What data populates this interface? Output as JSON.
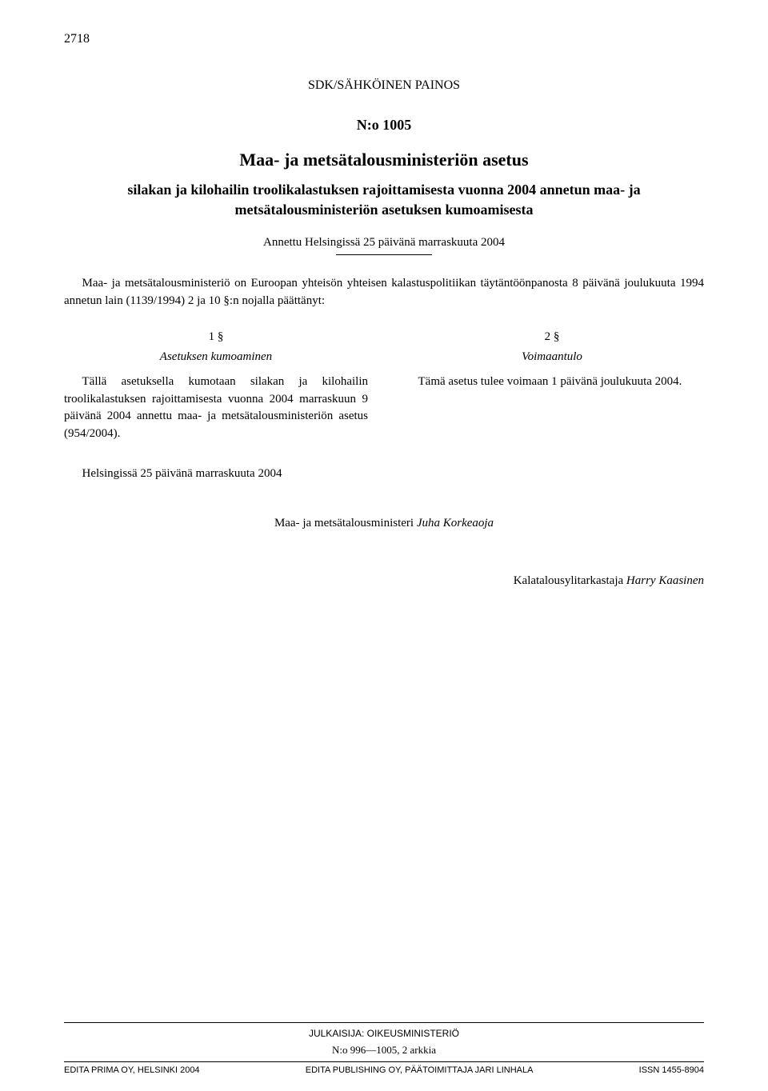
{
  "page_number": "2718",
  "edition_label": "SDK/SÄHKÖINEN PAINOS",
  "decree_number": "N:o 1005",
  "main_title": "Maa- ja metsätalousministeriön asetus",
  "subtitle": "silakan ja kilohailin troolikalastuksen rajoittamisesta vuonna 2004 annetun maa- ja metsätalousministeriön asetuksen kumoamisesta",
  "issued_line": "Annettu Helsingissä 25 päivänä marraskuuta 2004",
  "preamble": "Maa- ja metsätalousministeriö on Euroopan yhteisön yhteisen kalastuspolitiikan täytäntöönpanosta 8 päivänä joulukuuta 1994 annetun lain (1139/1994) 2 ja 10 §:n nojalla päättänyt:",
  "sections": {
    "left": {
      "num": "1 §",
      "title": "Asetuksen kumoaminen",
      "body": "Tällä asetuksella kumotaan silakan ja kilohailin troolikalastuksen rajoittamisesta vuonna 2004 marraskuun 9 päivänä 2004 annettu maa- ja metsätalousministeriön asetus (954/2004)."
    },
    "right": {
      "num": "2 §",
      "title": "Voimaantulo",
      "body": "Tämä asetus tulee voimaan 1 päivänä joulukuuta 2004."
    }
  },
  "closing_line": "Helsingissä 25 päivänä marraskuuta 2004",
  "minister_prefix": "Maa- ja metsätalousministeri ",
  "minister_name": "Juha Korkeaoja",
  "inspector_prefix": "Kalatalousylitarkastaja ",
  "inspector_name": "Harry Kaasinen",
  "footer": {
    "publisher": "JULKAISIJA: OIKEUSMINISTERIÖ",
    "issue_range": "N:o 996—1005, 2 arkkia",
    "left": "EDITA PRIMA OY, HELSINKI 2004",
    "center": "EDITA PUBLISHING OY, PÄÄTOIMITTAJA JARI LINHALA",
    "right": "ISSN 1455-8904"
  }
}
